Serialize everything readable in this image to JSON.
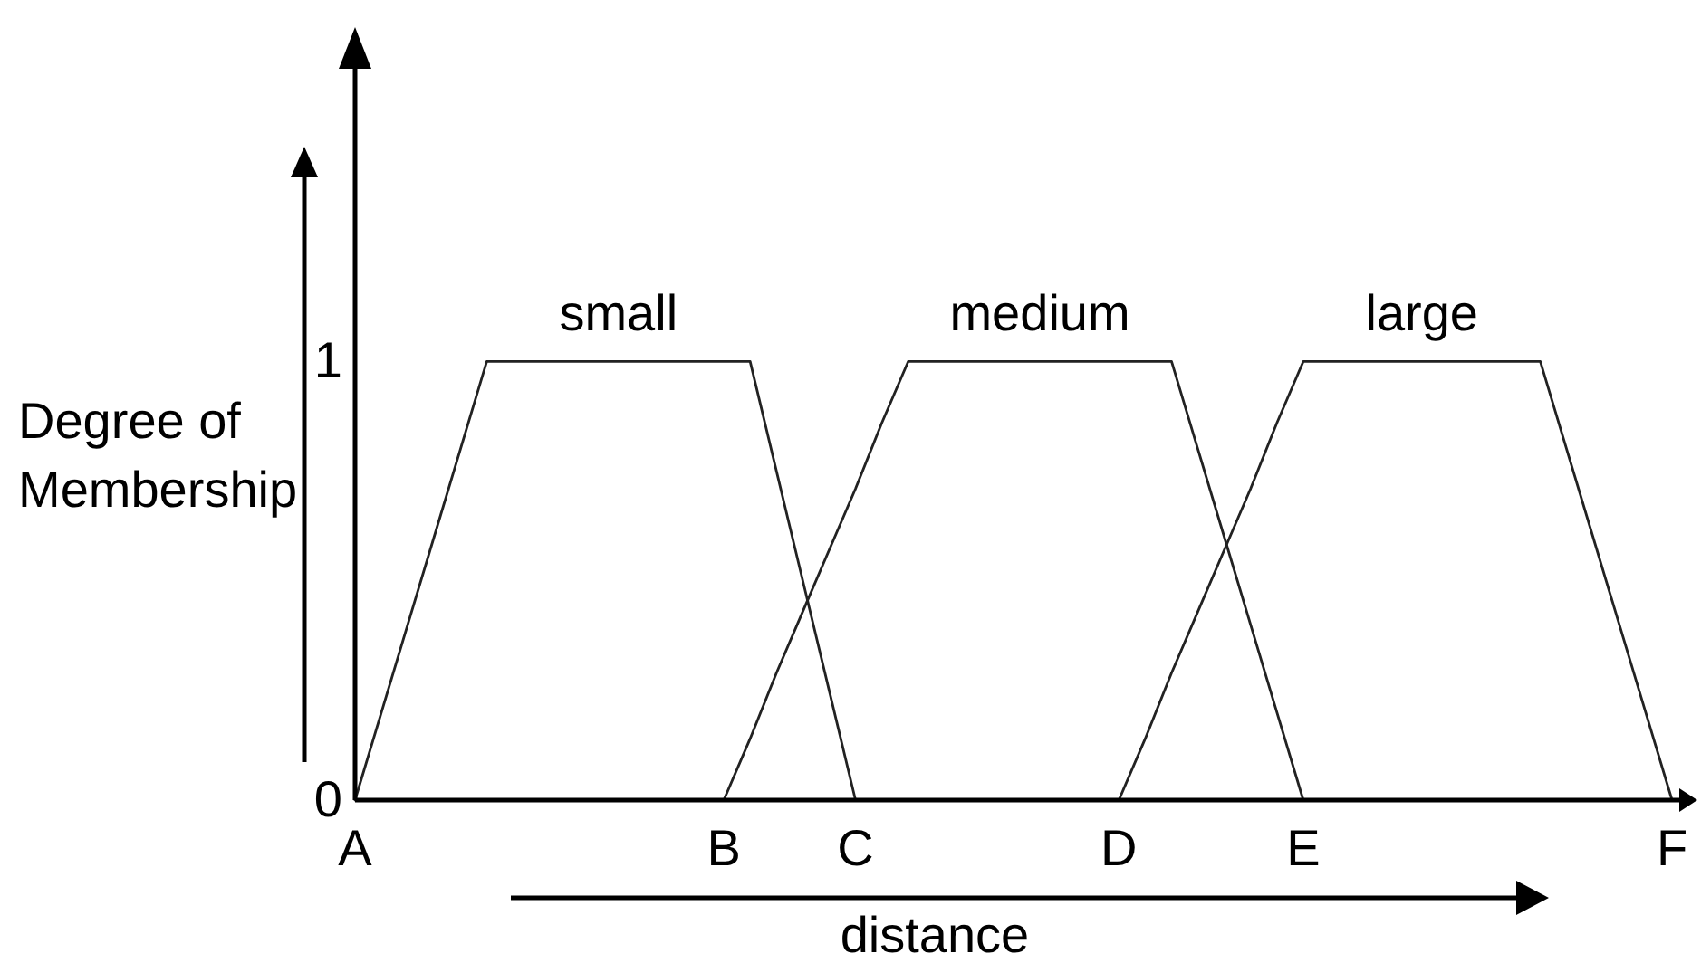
{
  "chart_data": {
    "type": "line",
    "xlabel": "distance",
    "ylabel": "Degree of Membership",
    "ylim": [
      0,
      1.75
    ],
    "yticks": [
      0,
      1
    ],
    "categories": [
      "A",
      null,
      null,
      null,
      null,
      null,
      null,
      null,
      null,
      null,
      null,
      null,
      null,
      null,
      "B",
      null,
      null,
      null,
      null,
      "C",
      null,
      null,
      null,
      null,
      null,
      null,
      null,
      null,
      null,
      "D",
      null,
      null,
      null,
      null,
      null,
      null,
      "E",
      null,
      null,
      null,
      null,
      null,
      null,
      null,
      null,
      null,
      null,
      null,
      null,
      null,
      "F"
    ],
    "series": [
      {
        "name": "small",
        "color": "#222222",
        "values": [
          0,
          0.2,
          0.4,
          0.6,
          0.8,
          1,
          1,
          1,
          1,
          1,
          1,
          1,
          1,
          1,
          1,
          1,
          0.75,
          0.5,
          0.25,
          0,
          null,
          null,
          null,
          null,
          null,
          null,
          null,
          null,
          null,
          null,
          null,
          null,
          null,
          null,
          null,
          null,
          null,
          null,
          null,
          null,
          null,
          null,
          null,
          null,
          null,
          null,
          null,
          null,
          null,
          null,
          null
        ]
      },
      {
        "name": "medium",
        "color": "#222222",
        "values": [
          null,
          null,
          null,
          null,
          null,
          null,
          null,
          null,
          null,
          null,
          null,
          null,
          null,
          null,
          0,
          0.14,
          0.29,
          0.43,
          0.57,
          0.71,
          0.86,
          1,
          1,
          1,
          1,
          1,
          1,
          1,
          1,
          1,
          1,
          1,
          0.8,
          0.6,
          0.4,
          0.2,
          0,
          null,
          null,
          null,
          null,
          null,
          null,
          null,
          null,
          null,
          null,
          null,
          null,
          null,
          null
        ]
      },
      {
        "name": "large",
        "color": "#222222",
        "values": [
          null,
          null,
          null,
          null,
          null,
          null,
          null,
          null,
          null,
          null,
          null,
          null,
          null,
          null,
          null,
          null,
          null,
          null,
          null,
          null,
          null,
          null,
          null,
          null,
          null,
          null,
          null,
          null,
          null,
          0,
          0.14,
          0.29,
          0.43,
          0.57,
          0.71,
          0.86,
          1,
          1,
          1,
          1,
          1,
          1,
          1,
          1,
          1,
          1,
          0.8,
          0.6,
          0.4,
          0.2,
          0
        ]
      }
    ],
    "line_style": "solid"
  }
}
